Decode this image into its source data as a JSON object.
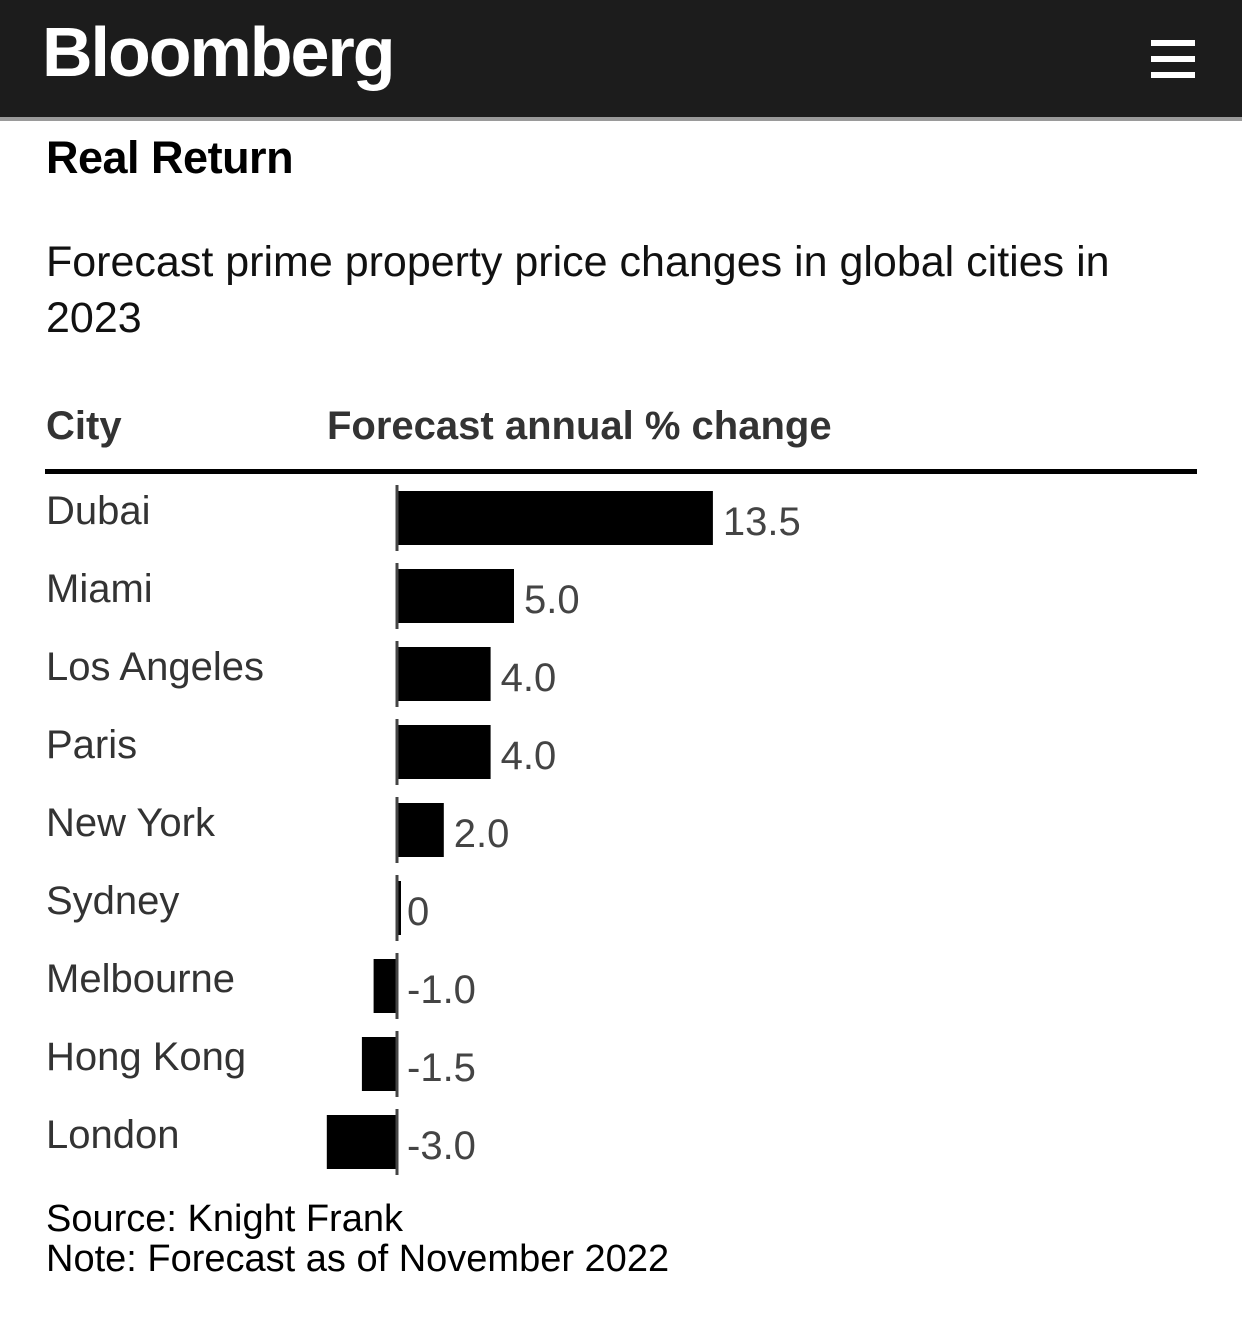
{
  "header": {
    "logo": "Bloomberg",
    "menu_icon": "hamburger-menu-icon"
  },
  "title": "Real Return",
  "subtitle": "Forecast prime property price changes in global cities in 2023",
  "columns": {
    "city": "City",
    "value": "Forecast annual % change"
  },
  "footer": {
    "source": "Source: Knight Frank",
    "note": "Note: Forecast as of November 2022"
  },
  "chart_data": {
    "type": "bar",
    "orientation": "horizontal",
    "title": "Real Return",
    "subtitle": "Forecast prime property price changes in global cities in 2023",
    "xlabel": "Forecast annual % change",
    "ylabel": "City",
    "categories": [
      "Dubai",
      "Miami",
      "Los Angeles",
      "Paris",
      "New York",
      "Sydney",
      "Melbourne",
      "Hong Kong",
      "London"
    ],
    "values": [
      13.5,
      5.0,
      4.0,
      4.0,
      2.0,
      0,
      -1.0,
      -1.5,
      -3.0
    ],
    "labels": [
      "13.5",
      "5.0",
      "4.0",
      "4.0",
      "2.0",
      "0",
      "-1.0",
      "-1.5",
      "-3.0"
    ],
    "grid": false,
    "bar_color": "#000000",
    "source": "Knight Frank",
    "note": "Forecast as of November 2022"
  }
}
